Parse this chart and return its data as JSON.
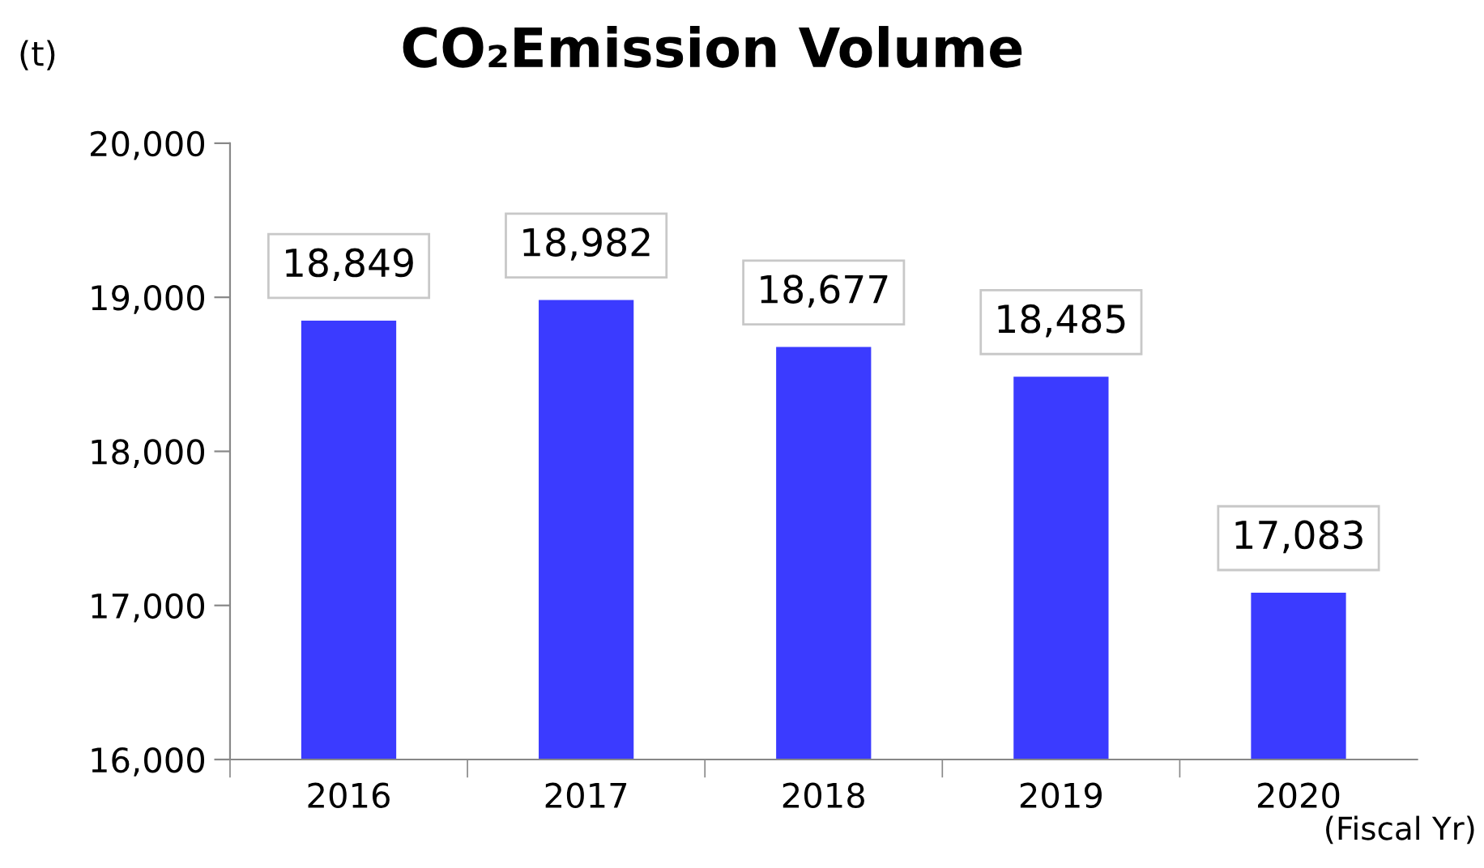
{
  "chart_data": {
    "type": "bar",
    "title": "CO₂Emission Volume",
    "ylabel": "(t)",
    "xlabel": "(Fiscal Yr)",
    "categories": [
      "2016",
      "2017",
      "2018",
      "2019",
      "2020"
    ],
    "values": [
      18849,
      18982,
      18677,
      18485,
      17083
    ],
    "value_labels": [
      "18,849",
      "18,982",
      "18,677",
      "18,485",
      "17,083"
    ],
    "color": "#3b3bff",
    "ylim": [
      16000,
      20000
    ],
    "yticks": [
      {
        "value": 16000,
        "label": "16,000"
      },
      {
        "value": 17000,
        "label": "17,000"
      },
      {
        "value": 18000,
        "label": "18,000"
      },
      {
        "value": 19000,
        "label": "19,000"
      },
      {
        "value": 20000,
        "label": "20,000"
      }
    ],
    "grid": false,
    "legend": false
  }
}
